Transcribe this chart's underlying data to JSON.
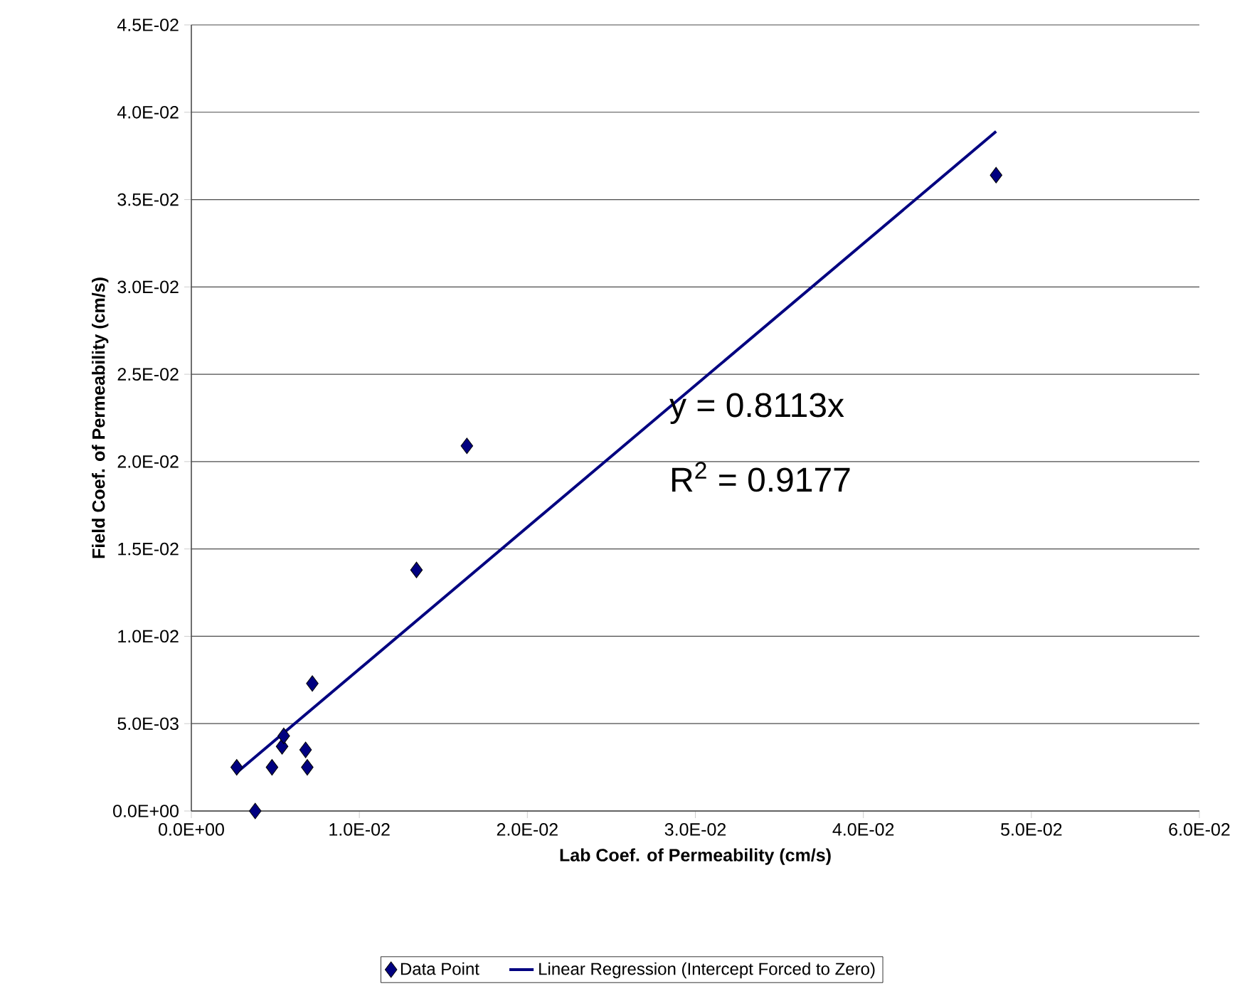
{
  "chart_data": {
    "type": "scatter",
    "xlabel": "Lab Coef. of Permeability (cm/s)",
    "ylabel": "Field Coef. of Permeability (cm/s)",
    "annotations": [
      "y = 0.8113x",
      "R$^{2}$ = 0.9177"
    ],
    "series": [
      {
        "name": "Data Point",
        "color": "#000080",
        "marker": "diamond",
        "x": [
          0.0027,
          0.0038,
          0.0048,
          0.0054,
          0.0055,
          0.0068,
          0.0069,
          0.0072,
          0.0134,
          0.0164,
          0.0479
        ],
        "values": [
          0.0025,
          0.0,
          0.0025,
          0.0037,
          0.0043,
          0.0035,
          0.0025,
          0.0073,
          0.0138,
          0.0209,
          0.0364
        ]
      },
      {
        "name": "Linear Regression (Intercept Forced to Zero)",
        "type": "line",
        "color": "#000080",
        "line_style": "solid",
        "x": [
          0.0027,
          0.0479
        ],
        "values": [
          0.0022,
          0.0389
        ]
      }
    ],
    "xlim": [
      0,
      0.06
    ],
    "ylim": [
      0,
      0.045
    ],
    "xticks": [
      {
        "value": 0,
        "label": "0.0E+00"
      },
      {
        "value": 0.01,
        "label": "1.0E-02"
      },
      {
        "value": 0.02,
        "label": "2.0E-02"
      },
      {
        "value": 0.03,
        "label": "3.0E-02"
      },
      {
        "value": 0.04,
        "label": "4.0E-02"
      },
      {
        "value": 0.05,
        "label": "5.0E-02"
      },
      {
        "value": 0.06,
        "label": "6.0E-02"
      }
    ],
    "yticks": [
      {
        "value": 0,
        "label": "0.0E+00"
      },
      {
        "value": 0.005,
        "label": "5.0E-03"
      },
      {
        "value": 0.01,
        "label": "1.0E-02"
      },
      {
        "value": 0.015,
        "label": "1.5E-02"
      },
      {
        "value": 0.02,
        "label": "2.0E-02"
      },
      {
        "value": 0.025,
        "label": "2.5E-02"
      },
      {
        "value": 0.03,
        "label": "3.0E-02"
      },
      {
        "value": 0.035,
        "label": "3.5E-02"
      },
      {
        "value": 0.04,
        "label": "4.0E-02"
      },
      {
        "value": 0.045,
        "label": "4.5E-02"
      }
    ],
    "grid": "y",
    "legend": "bottom"
  }
}
